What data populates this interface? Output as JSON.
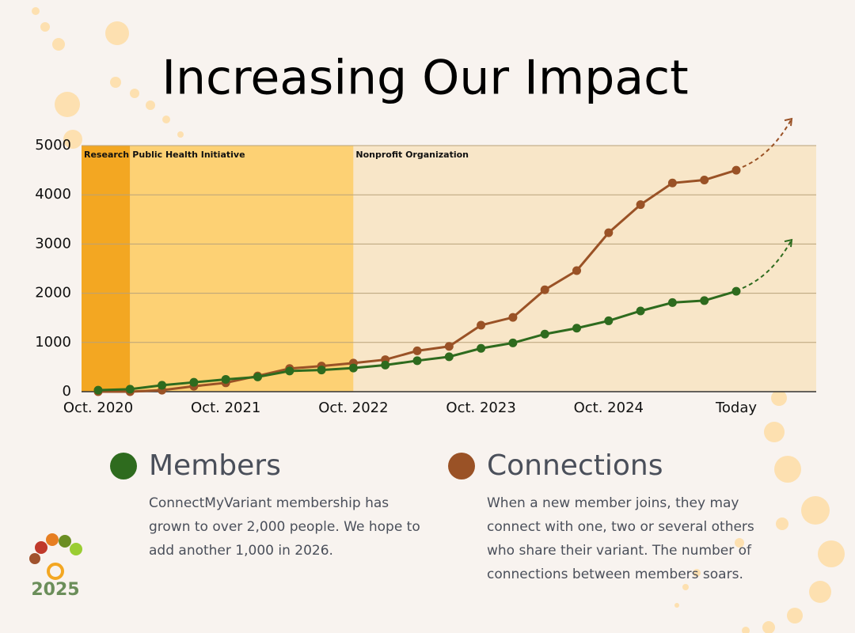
{
  "chart_data": {
    "type": "line",
    "title": "Increasing Our Impact",
    "categories": [
      "Oct. 2020",
      null,
      null,
      null,
      "Oct. 2021",
      null,
      null,
      null,
      "Oct. 2022",
      null,
      null,
      null,
      "Oct. 2023",
      null,
      null,
      null,
      "Oct. 2024",
      null,
      null,
      null,
      "Today"
    ],
    "series": [
      {
        "name": "Members",
        "color": "#2e6b1e",
        "description": "ConnectMyVariant membership has grown to over 2,000 people. We hope to add another 1,000 in 2026.",
        "values": [
          30,
          50,
          130,
          190,
          250,
          300,
          420,
          440,
          480,
          540,
          630,
          710,
          880,
          990,
          1170,
          1290,
          1440,
          1640,
          1810,
          1850,
          2040
        ]
      },
      {
        "name": "Connections",
        "color": "#9a5226",
        "description": "When a new member joins, they may connect with one, two or several others who share their variant. The number of connections between members soars.",
        "values": [
          0,
          0,
          30,
          110,
          180,
          320,
          470,
          520,
          580,
          650,
          830,
          920,
          1350,
          1510,
          2070,
          2460,
          3230,
          3800,
          4240,
          4300,
          4500
        ]
      }
    ],
    "phases": [
      {
        "label": "Research",
        "color": "#f3a722"
      },
      {
        "label": "Public Health Initiative",
        "color": "#fdd174"
      },
      {
        "label": "Nonprofit Organization",
        "color": "#f8e6c8"
      }
    ],
    "ylim": [
      0,
      5000
    ],
    "yticks": [
      0,
      1000,
      2000,
      3000,
      4000,
      5000
    ],
    "grid": true
  },
  "logo_text": "2025"
}
